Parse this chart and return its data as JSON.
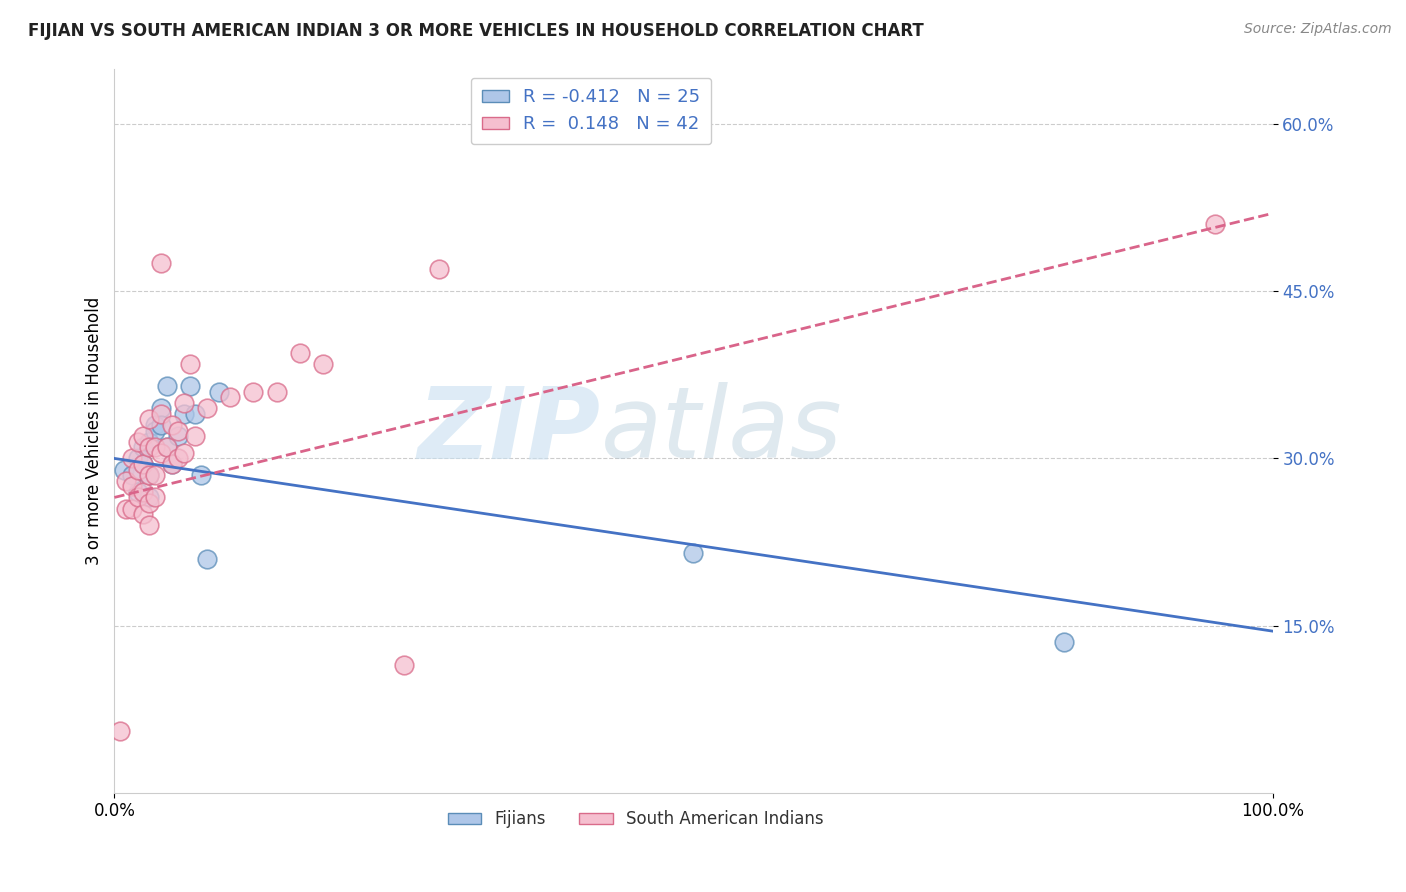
{
  "title": "FIJIAN VS SOUTH AMERICAN INDIAN 3 OR MORE VEHICLES IN HOUSEHOLD CORRELATION CHART",
  "source_text": "Source: ZipAtlas.com",
  "ylabel": "3 or more Vehicles in Household",
  "xlim": [
    0.0,
    1.0
  ],
  "ylim": [
    0.0,
    0.65
  ],
  "yticks": [
    0.15,
    0.3,
    0.45,
    0.6
  ],
  "ytick_labels": [
    "15.0%",
    "30.0%",
    "45.0%",
    "60.0%"
  ],
  "xticks": [
    0.0,
    1.0
  ],
  "xtick_labels": [
    "0.0%",
    "100.0%"
  ],
  "fijian_color": "#aec6e8",
  "fijian_edge_color": "#5b8db8",
  "south_american_color": "#f5bfcf",
  "south_american_edge_color": "#d96b8a",
  "fijian_R": -0.412,
  "fijian_N": 25,
  "south_american_R": 0.148,
  "south_american_N": 42,
  "fijian_line_color": "#4472c4",
  "south_american_line_color": "#d9648a",
  "legend_label_fijian": "Fijians",
  "legend_label_south_american": "South American Indians",
  "watermark_zip": "ZIP",
  "watermark_atlas": "atlas",
  "background_color": "#ffffff",
  "grid_color": "#cccccc",
  "fijian_points_x": [
    0.008,
    0.015,
    0.02,
    0.02,
    0.025,
    0.025,
    0.03,
    0.03,
    0.03,
    0.035,
    0.035,
    0.04,
    0.04,
    0.045,
    0.045,
    0.05,
    0.055,
    0.06,
    0.065,
    0.07,
    0.075,
    0.08,
    0.09,
    0.5,
    0.82
  ],
  "fijian_points_y": [
    0.29,
    0.285,
    0.3,
    0.27,
    0.31,
    0.295,
    0.315,
    0.285,
    0.265,
    0.33,
    0.325,
    0.345,
    0.33,
    0.31,
    0.365,
    0.295,
    0.32,
    0.34,
    0.365,
    0.34,
    0.285,
    0.21,
    0.36,
    0.215,
    0.135
  ],
  "south_american_points_x": [
    0.005,
    0.01,
    0.01,
    0.015,
    0.015,
    0.015,
    0.02,
    0.02,
    0.02,
    0.025,
    0.025,
    0.025,
    0.025,
    0.03,
    0.03,
    0.03,
    0.03,
    0.03,
    0.035,
    0.035,
    0.035,
    0.04,
    0.04,
    0.04,
    0.045,
    0.05,
    0.05,
    0.055,
    0.055,
    0.06,
    0.06,
    0.065,
    0.07,
    0.08,
    0.1,
    0.12,
    0.14,
    0.16,
    0.18,
    0.25,
    0.28,
    0.95
  ],
  "south_american_points_y": [
    0.055,
    0.28,
    0.255,
    0.3,
    0.275,
    0.255,
    0.315,
    0.29,
    0.265,
    0.32,
    0.295,
    0.27,
    0.25,
    0.335,
    0.31,
    0.285,
    0.26,
    0.24,
    0.31,
    0.285,
    0.265,
    0.475,
    0.34,
    0.305,
    0.31,
    0.33,
    0.295,
    0.325,
    0.3,
    0.35,
    0.305,
    0.385,
    0.32,
    0.345,
    0.355,
    0.36,
    0.36,
    0.395,
    0.385,
    0.115,
    0.47,
    0.51
  ],
  "fijian_line_x0": 0.0,
  "fijian_line_y0": 0.3,
  "fijian_line_x1": 1.0,
  "fijian_line_y1": 0.145,
  "south_line_x0": 0.0,
  "south_line_y0": 0.265,
  "south_line_x1": 1.0,
  "south_line_y1": 0.52
}
